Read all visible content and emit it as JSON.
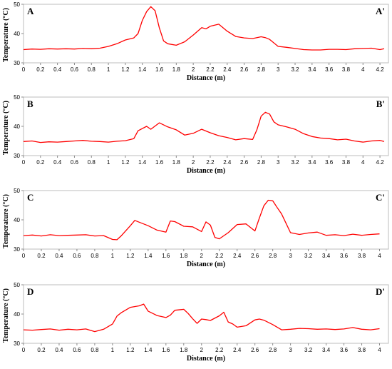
{
  "chart_data": [
    {
      "type": "line",
      "corner_left": "A",
      "corner_right": "A'",
      "xlabel": "Distance (m)",
      "ylabel": "Temperature (°C)",
      "xlim": [
        0,
        4.3
      ],
      "ylim": [
        30,
        50
      ],
      "x_ticks": [
        "0",
        "0.2",
        "0.4",
        "0.6",
        "0.8",
        "1",
        "1.2",
        "1.4",
        "1.6",
        "1.8",
        "2",
        "2.2",
        "2.4",
        "2.6",
        "2.8",
        "3",
        "3.2",
        "3.4",
        "3.6",
        "3.8",
        "4",
        "4.2"
      ],
      "y_ticks": [
        "30",
        "40",
        "50"
      ],
      "line_color": "#ff0000",
      "x": [
        0,
        0.1,
        0.2,
        0.3,
        0.4,
        0.5,
        0.6,
        0.7,
        0.8,
        0.9,
        1.0,
        1.1,
        1.2,
        1.3,
        1.35,
        1.4,
        1.45,
        1.5,
        1.55,
        1.6,
        1.65,
        1.7,
        1.8,
        1.9,
        2.0,
        2.1,
        2.15,
        2.2,
        2.3,
        2.35,
        2.4,
        2.5,
        2.6,
        2.7,
        2.8,
        2.85,
        2.9,
        3.0,
        3.1,
        3.2,
        3.3,
        3.4,
        3.5,
        3.6,
        3.7,
        3.8,
        3.9,
        4.0,
        4.1,
        4.2,
        4.25
      ],
      "values": [
        34.5,
        34.7,
        34.6,
        34.8,
        34.7,
        34.8,
        34.7,
        34.9,
        34.8,
        35.0,
        35.6,
        36.5,
        37.8,
        38.5,
        40.0,
        44.5,
        47.5,
        49.2,
        47.8,
        42.0,
        37.5,
        36.5,
        36.0,
        37.2,
        39.5,
        42.0,
        41.6,
        42.5,
        43.2,
        42.0,
        40.8,
        39.0,
        38.5,
        38.3,
        38.9,
        38.6,
        38.0,
        35.6,
        35.3,
        34.9,
        34.5,
        34.4,
        34.4,
        34.6,
        34.6,
        34.5,
        34.8,
        34.9,
        35.0,
        34.5,
        34.8
      ]
    },
    {
      "type": "line",
      "corner_left": "B",
      "corner_right": "B'",
      "xlabel": "Distance (m)",
      "ylabel": "Temperature (°C)",
      "xlim": [
        0,
        4.3
      ],
      "ylim": [
        30,
        50
      ],
      "x_ticks": [
        "0",
        "0.2",
        "0.4",
        "0.6",
        "0.8",
        "1",
        "1.2",
        "1.4",
        "1.6",
        "1.8",
        "2",
        "2.2",
        "2.4",
        "2.6",
        "2.8",
        "3",
        "3.2",
        "3.4",
        "3.6",
        "3.8",
        "4",
        "4.2"
      ],
      "y_ticks": [
        "30",
        "40",
        "50"
      ],
      "line_color": "#ff0000",
      "x": [
        0,
        0.1,
        0.2,
        0.3,
        0.4,
        0.5,
        0.6,
        0.7,
        0.8,
        0.9,
        1.0,
        1.1,
        1.2,
        1.3,
        1.35,
        1.45,
        1.5,
        1.6,
        1.7,
        1.8,
        1.9,
        2.0,
        2.1,
        2.2,
        2.3,
        2.4,
        2.5,
        2.6,
        2.7,
        2.75,
        2.8,
        2.85,
        2.9,
        2.95,
        3.0,
        3.1,
        3.2,
        3.3,
        3.4,
        3.5,
        3.6,
        3.7,
        3.8,
        3.9,
        4.0,
        4.1,
        4.2,
        4.25
      ],
      "values": [
        34.8,
        35.0,
        34.5,
        34.7,
        34.6,
        34.8,
        35.0,
        35.2,
        34.9,
        34.8,
        34.6,
        34.9,
        35.1,
        35.8,
        38.5,
        40.0,
        39.0,
        41.2,
        39.8,
        38.8,
        37.0,
        37.6,
        39.0,
        37.8,
        36.8,
        36.2,
        35.4,
        35.8,
        35.5,
        38.8,
        43.5,
        44.8,
        44.2,
        41.5,
        40.5,
        39.8,
        39.0,
        37.5,
        36.5,
        36.0,
        35.8,
        35.4,
        35.6,
        35.0,
        34.6,
        35.0,
        35.2,
        34.8
      ]
    },
    {
      "type": "line",
      "corner_left": "C",
      "corner_right": "C'",
      "xlabel": "Distance (m)",
      "ylabel": "Temperature (°C)",
      "xlim": [
        0,
        4.1
      ],
      "ylim": [
        30,
        50
      ],
      "x_ticks": [
        "0",
        "0.2",
        "0.4",
        "0.6",
        "0.8",
        "1",
        "1.2",
        "1.4",
        "1.6",
        "1.8",
        "2",
        "2.2",
        "2.4",
        "2.6",
        "2.8",
        "3",
        "3.2",
        "3.4",
        "3.6",
        "3.8",
        "4"
      ],
      "y_ticks": [
        "30",
        "40",
        "50"
      ],
      "line_color": "#ff0000",
      "x": [
        0,
        0.1,
        0.2,
        0.3,
        0.4,
        0.5,
        0.6,
        0.7,
        0.8,
        0.9,
        1.0,
        1.05,
        1.1,
        1.2,
        1.25,
        1.3,
        1.4,
        1.5,
        1.6,
        1.65,
        1.7,
        1.8,
        1.9,
        2.0,
        2.05,
        2.1,
        2.15,
        2.2,
        2.3,
        2.4,
        2.5,
        2.6,
        2.65,
        2.7,
        2.75,
        2.8,
        2.85,
        2.9,
        3.0,
        3.1,
        3.2,
        3.3,
        3.4,
        3.5,
        3.6,
        3.7,
        3.8,
        3.9,
        4.0
      ],
      "values": [
        34.6,
        34.8,
        34.5,
        34.9,
        34.6,
        34.7,
        34.8,
        34.9,
        34.5,
        34.6,
        33.3,
        33.2,
        34.6,
        38.0,
        39.8,
        39.2,
        38.0,
        36.5,
        35.8,
        39.6,
        39.4,
        37.8,
        37.6,
        36.0,
        39.3,
        38.2,
        34.0,
        33.5,
        35.6,
        38.4,
        38.6,
        36.2,
        40.6,
        44.8,
        46.7,
        46.5,
        44.2,
        42.0,
        35.6,
        35.0,
        35.5,
        35.8,
        34.7,
        34.9,
        34.6,
        35.1,
        34.7,
        35.0,
        35.2
      ]
    },
    {
      "type": "line",
      "corner_left": "D",
      "corner_right": "D'",
      "xlabel": "Distance (m)",
      "ylabel": "Temperature (°C)",
      "xlim": [
        0,
        4.1
      ],
      "ylim": [
        30,
        50
      ],
      "x_ticks": [
        "0",
        "0.2",
        "0.4",
        "0.6",
        "0.8",
        "1",
        "1.2",
        "1.4",
        "1.6",
        "1.8",
        "2",
        "2.2",
        "2.4",
        "2.6",
        "2.8",
        "3",
        "3.2",
        "3.4",
        "3.6",
        "3.8",
        "4"
      ],
      "y_ticks": [
        "30",
        "40",
        "50"
      ],
      "line_color": "#ff0000",
      "x": [
        0,
        0.1,
        0.2,
        0.3,
        0.4,
        0.5,
        0.6,
        0.7,
        0.8,
        0.9,
        1.0,
        1.05,
        1.1,
        1.2,
        1.3,
        1.35,
        1.4,
        1.5,
        1.6,
        1.65,
        1.7,
        1.8,
        1.85,
        1.9,
        1.95,
        2.0,
        2.05,
        2.1,
        2.2,
        2.25,
        2.3,
        2.35,
        2.4,
        2.5,
        2.6,
        2.65,
        2.7,
        2.8,
        2.9,
        3.0,
        3.1,
        3.2,
        3.3,
        3.4,
        3.5,
        3.6,
        3.7,
        3.8,
        3.9,
        4.0
      ],
      "values": [
        34.6,
        34.5,
        34.7,
        34.9,
        34.5,
        34.8,
        34.6,
        34.9,
        34.0,
        34.8,
        36.6,
        39.3,
        40.5,
        42.3,
        42.8,
        43.4,
        41.0,
        39.5,
        38.8,
        39.6,
        41.3,
        41.6,
        40.2,
        38.4,
        36.8,
        38.3,
        38.1,
        37.8,
        39.4,
        40.6,
        37.3,
        36.6,
        35.5,
        36.0,
        38.0,
        38.3,
        37.9,
        36.4,
        34.6,
        34.8,
        35.1,
        35.0,
        34.8,
        34.9,
        34.7,
        34.9,
        35.4,
        34.8,
        34.6,
        35.0
      ]
    }
  ]
}
